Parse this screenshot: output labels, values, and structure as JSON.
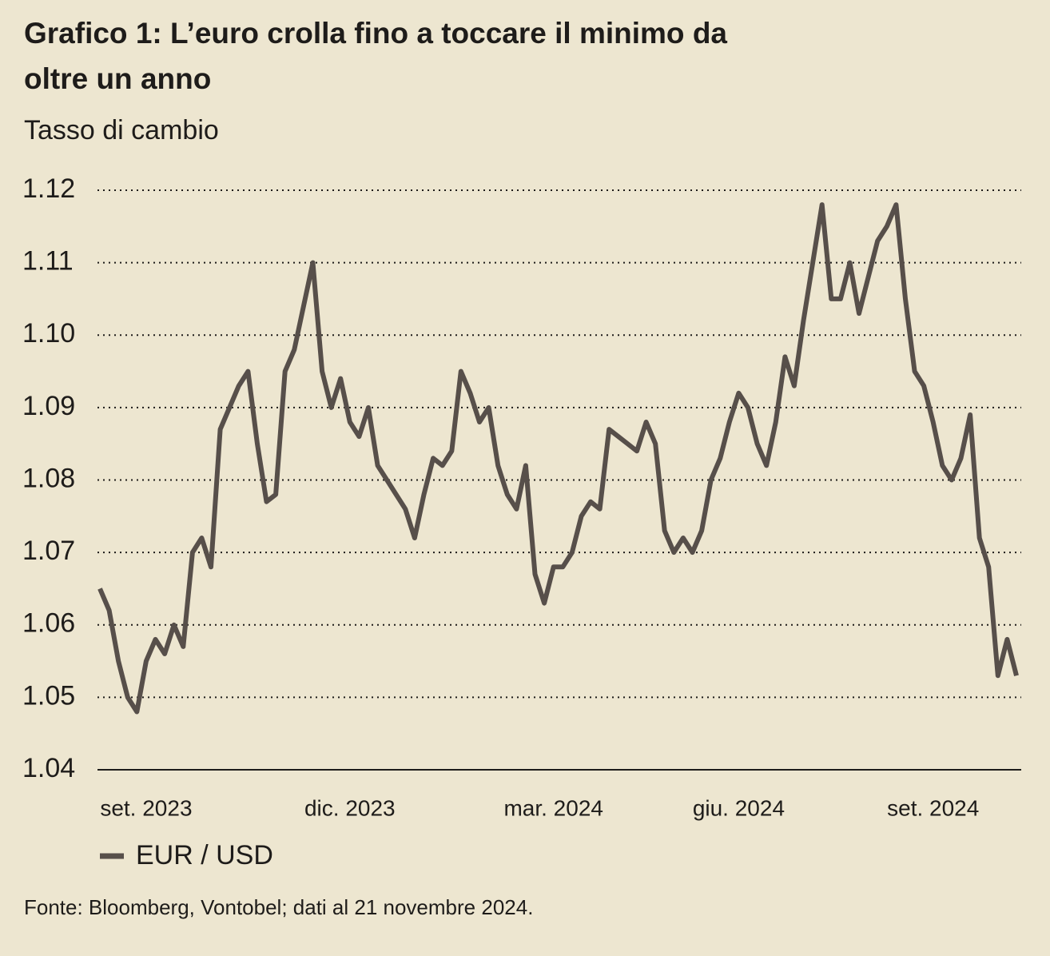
{
  "chart_data": {
    "type": "line",
    "title": "Grafico 1: L’euro crolla fino a toccare il minimo da oltre un anno",
    "subtitle": "Tasso di cambio",
    "source": "Fonte: Bloomberg, Vontobel; dati al 21 novembre 2024.",
    "categories": [
      null,
      null,
      null,
      null,
      null,
      "set. 2023",
      null,
      null,
      null,
      null,
      null,
      null,
      null,
      null,
      null,
      null,
      null,
      null,
      null,
      null,
      null,
      null,
      null,
      null,
      null,
      null,
      null,
      "dic. 2023",
      null,
      null,
      null,
      null,
      null,
      null,
      null,
      null,
      null,
      null,
      null,
      null,
      null,
      null,
      null,
      null,
      null,
      null,
      null,
      null,
      null,
      "mar. 2024",
      null,
      null,
      null,
      null,
      null,
      null,
      null,
      null,
      null,
      null,
      null,
      null,
      null,
      null,
      null,
      null,
      null,
      null,
      null,
      "giu. 2024",
      null,
      null,
      null,
      null,
      null,
      null,
      null,
      null,
      null,
      null,
      null,
      null,
      null,
      null,
      null,
      null,
      null,
      null,
      null,
      null,
      "set. 2024",
      null,
      null,
      null,
      null,
      null,
      null,
      null,
      null,
      null
    ],
    "series": [
      {
        "name": "EUR / USD",
        "color": "#574f4a",
        "values": [
          1.065,
          1.062,
          1.055,
          1.05,
          1.048,
          1.055,
          1.058,
          1.056,
          1.06,
          1.057,
          1.07,
          1.072,
          1.068,
          1.087,
          1.09,
          1.093,
          1.095,
          1.085,
          1.077,
          1.078,
          1.095,
          1.098,
          1.104,
          1.11,
          1.095,
          1.09,
          1.094,
          1.088,
          1.086,
          1.09,
          1.082,
          1.08,
          1.078,
          1.076,
          1.072,
          1.078,
          1.083,
          1.082,
          1.084,
          1.095,
          1.092,
          1.088,
          1.09,
          1.082,
          1.078,
          1.076,
          1.082,
          1.067,
          1.063,
          1.068,
          1.068,
          1.07,
          1.075,
          1.077,
          1.076,
          1.087,
          1.086,
          1.085,
          1.084,
          1.088,
          1.085,
          1.073,
          1.07,
          1.072,
          1.07,
          1.073,
          1.08,
          1.083,
          1.088,
          1.092,
          1.09,
          1.085,
          1.082,
          1.088,
          1.097,
          1.093,
          1.102,
          1.11,
          1.118,
          1.105,
          1.105,
          1.11,
          1.103,
          1.108,
          1.113,
          1.115,
          1.118,
          1.105,
          1.095,
          1.093,
          1.088,
          1.082,
          1.08,
          1.083,
          1.089,
          1.072,
          1.068,
          1.053,
          1.058,
          1.053
        ]
      }
    ],
    "ylim": [
      1.04,
      1.12
    ],
    "yticks": [
      {
        "value": 1.04,
        "label": "1.04"
      },
      {
        "value": 1.05,
        "label": "1.05"
      },
      {
        "value": 1.06,
        "label": "1.06"
      },
      {
        "value": 1.07,
        "label": "1.07"
      },
      {
        "value": 1.08,
        "label": "1.08"
      },
      {
        "value": 1.09,
        "label": "1.09"
      },
      {
        "value": 1.1,
        "label": "1.10"
      },
      {
        "value": 1.11,
        "label": "1.11"
      },
      {
        "value": 1.12,
        "label": "1.12"
      }
    ],
    "grid": true
  }
}
